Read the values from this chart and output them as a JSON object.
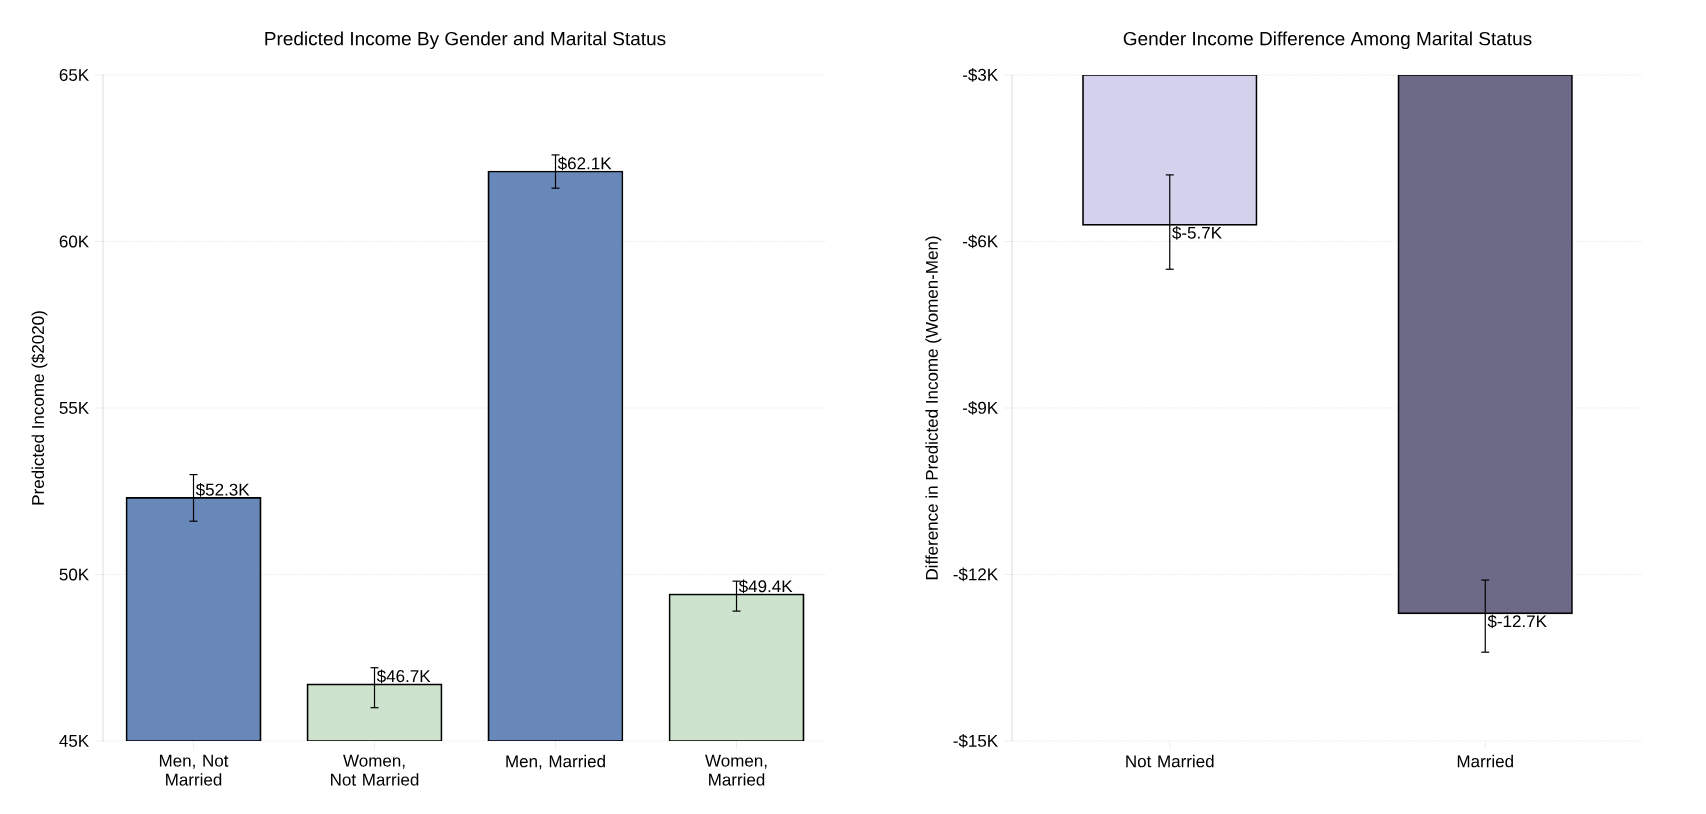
{
  "chart_data": [
    {
      "type": "bar",
      "title": "Predicted Income By Gender and Marital Status",
      "ylabel": "Predicted Income ($2020)",
      "categories": [
        "Men, Not Married",
        "Women, Not Married",
        "Men, Married",
        "Women, Married"
      ],
      "values": [
        52.3,
        46.7,
        62.1,
        49.4
      ],
      "colors": [
        "#6788b8",
        "#cde3cd",
        "#6788b8",
        "#cde3cd"
      ],
      "errors": [
        [
          51.6,
          53.0
        ],
        [
          46.0,
          47.2
        ],
        [
          61.6,
          62.6
        ],
        [
          48.9,
          49.8
        ]
      ],
      "value_labels": [
        "$52.3K",
        "$46.7K",
        "$62.1K",
        "$49.4K"
      ],
      "ylim": [
        45,
        65
      ],
      "yticks": [
        {
          "value": 45,
          "label": "45K"
        },
        {
          "value": 50,
          "label": "50K"
        },
        {
          "value": 55,
          "label": "55K"
        },
        {
          "value": 60,
          "label": "60K"
        },
        {
          "value": 65,
          "label": "65K"
        }
      ],
      "grid": "y"
    },
    {
      "type": "bar",
      "title": "Gender Income Difference Among Marital Status",
      "ylabel": "Difference in Predicted Income (Women-Men)",
      "categories": [
        "Not Married",
        "Married"
      ],
      "values": [
        -5.7,
        -12.7
      ],
      "colors": [
        "#d4d1ec",
        "#6d6a87"
      ],
      "errors": [
        [
          -6.5,
          -4.8
        ],
        [
          -13.4,
          -12.1
        ]
      ],
      "value_labels": [
        "$-5.7K",
        "$-12.7K"
      ],
      "ylim": [
        -15,
        -3
      ],
      "yticks": [
        {
          "value": -15,
          "label": "-$15K"
        },
        {
          "value": -12,
          "label": "-$12K"
        },
        {
          "value": -9,
          "label": "-$9K"
        },
        {
          "value": -6,
          "label": "-$6K"
        },
        {
          "value": -3,
          "label": "-$3K"
        }
      ],
      "grid": "y"
    }
  ]
}
